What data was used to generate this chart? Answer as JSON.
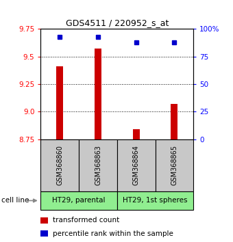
{
  "title": "GDS4511 / 220952_s_at",
  "samples": [
    "GSM368860",
    "GSM368863",
    "GSM368864",
    "GSM368865"
  ],
  "transformed_counts": [
    9.41,
    9.57,
    8.84,
    9.07
  ],
  "percentile_ranks": [
    93,
    93,
    88,
    88
  ],
  "cell_lines": [
    {
      "label": "HT29, parental",
      "samples": [
        0,
        1
      ],
      "color": "#90EE90"
    },
    {
      "label": "HT29, 1st spheres",
      "samples": [
        2,
        3
      ],
      "color": "#90EE90"
    }
  ],
  "ylim_left": [
    8.75,
    9.75
  ],
  "ylim_right": [
    0,
    100
  ],
  "yticks_left": [
    8.75,
    9.0,
    9.25,
    9.5,
    9.75
  ],
  "yticks_right": [
    0,
    25,
    50,
    75,
    100
  ],
  "ytick_labels_right": [
    "0",
    "25",
    "50",
    "75",
    "100%"
  ],
  "bar_color": "#cc0000",
  "dot_color": "#0000cc",
  "bar_width": 0.18,
  "sample_bg_color": "#c8c8c8",
  "group_bg_color": "#90EE90",
  "legend_items": [
    {
      "color": "#cc0000",
      "label": "transformed count"
    },
    {
      "color": "#0000cc",
      "label": "percentile rank within the sample"
    }
  ]
}
